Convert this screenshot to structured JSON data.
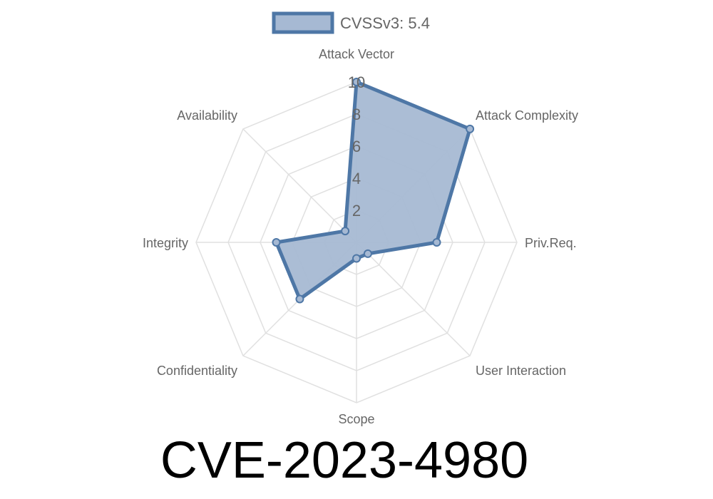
{
  "chart_data": {
    "type": "radar",
    "title": "CVE-2023-4980",
    "categories": [
      "Attack Vector",
      "Attack Complexity",
      "Priv.Req.",
      "User Interaction",
      "Scope",
      "Confidentiality",
      "Integrity",
      "Availability"
    ],
    "series": [
      {
        "name": "CVSSv3: 5.4",
        "values": [
          10,
          10,
          5,
          1,
          1,
          5,
          5,
          1
        ]
      }
    ],
    "rlim": [
      0,
      10
    ],
    "ticks": [
      "2",
      "4",
      "6",
      "8",
      "10"
    ],
    "tick_values": [
      2,
      4,
      6,
      8,
      10
    ],
    "grid": true,
    "legend": "top",
    "colors": {
      "line": "#4e77a6",
      "fill": "#a6b9d3",
      "grid": "#e0e0e0"
    }
  }
}
